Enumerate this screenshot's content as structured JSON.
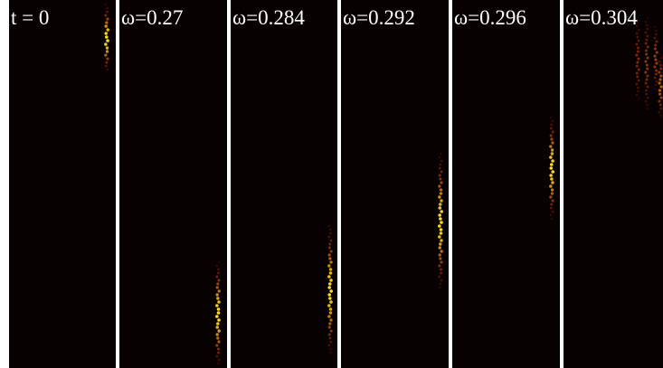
{
  "panels": [
    {
      "label": "t = 0"
    },
    {
      "label": "ω=0.27"
    },
    {
      "label": "ω=0.284"
    },
    {
      "label": "ω=0.292"
    },
    {
      "label": "ω=0.296"
    },
    {
      "label": "ω=0.304"
    }
  ]
}
